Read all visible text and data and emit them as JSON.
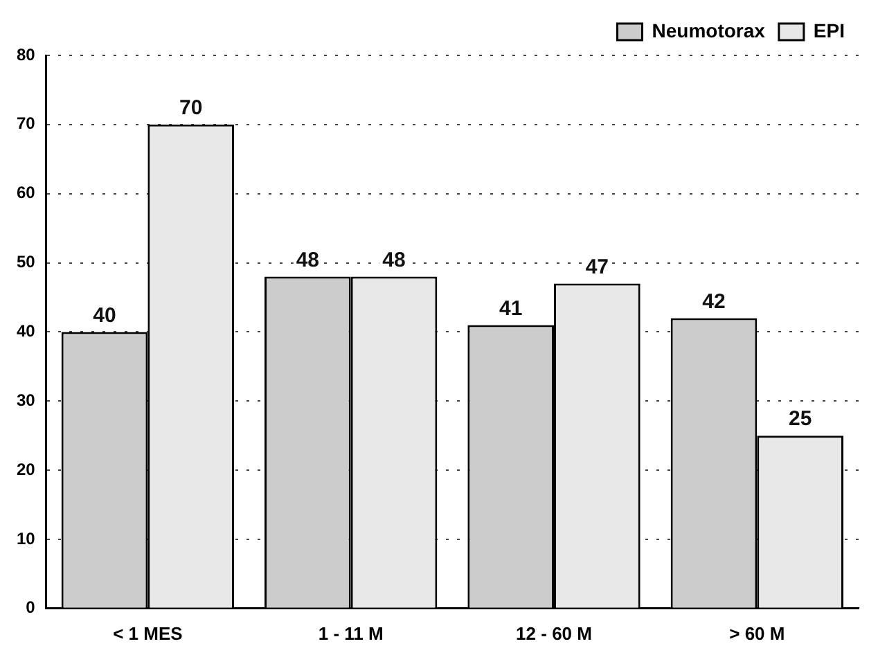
{
  "chart_data": {
    "type": "bar",
    "categories": [
      "< 1 MES",
      "1 - 11 M",
      "12 - 60 M",
      "> 60 M"
    ],
    "series": [
      {
        "name": "Neumotorax",
        "color": "#cccccc",
        "values": [
          40,
          48,
          41,
          42
        ]
      },
      {
        "name": "EPI",
        "color": "#e8e8e8",
        "values": [
          70,
          48,
          47,
          25
        ]
      }
    ],
    "ylim": [
      0,
      80
    ],
    "yticks": [
      0,
      10,
      20,
      30,
      40,
      50,
      60,
      70,
      80
    ],
    "grid": "y",
    "legend": "top right",
    "data_labels": true
  }
}
